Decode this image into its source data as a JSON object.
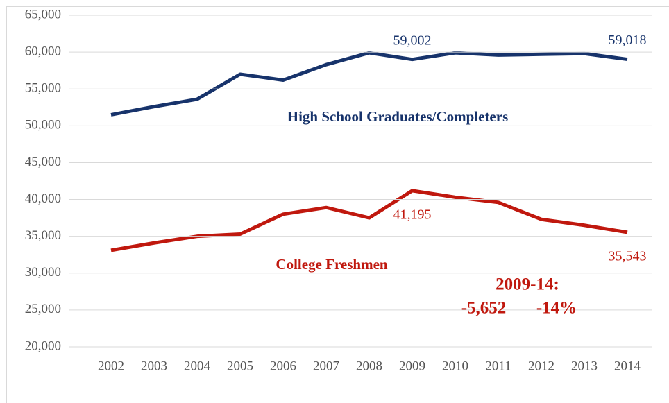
{
  "chart_data": {
    "type": "line",
    "categories": [
      "2002",
      "2003",
      "2004",
      "2005",
      "2006",
      "2007",
      "2008",
      "2009",
      "2010",
      "2011",
      "2012",
      "2013",
      "2014"
    ],
    "series": [
      {
        "name": "High School Graduates/Completers",
        "color": "#17336b",
        "values": [
          51500,
          52600,
          53600,
          57000,
          56200,
          58300,
          59900,
          59002,
          59900,
          59600,
          59700,
          59800,
          59018
        ],
        "value_labels": [
          null,
          null,
          null,
          null,
          null,
          null,
          null,
          "59,002",
          null,
          null,
          null,
          null,
          "59,018"
        ]
      },
      {
        "name": "College Freshmen",
        "color": "#c0180e",
        "values": [
          33100,
          34100,
          35000,
          35300,
          38000,
          38900,
          37500,
          41195,
          40300,
          39600,
          37300,
          36500,
          35543
        ],
        "value_labels": [
          null,
          null,
          null,
          null,
          null,
          null,
          null,
          "41,195",
          null,
          null,
          null,
          null,
          "35,543"
        ]
      }
    ],
    "annotations": [
      "2009-14:",
      "-5,652",
      "-14%"
    ],
    "ylim": [
      20000,
      65000
    ],
    "yticks": [
      {
        "value": 20000,
        "label": "20,000"
      },
      {
        "value": 25000,
        "label": "25,000"
      },
      {
        "value": 30000,
        "label": "30,000"
      },
      {
        "value": 35000,
        "label": "35,000"
      },
      {
        "value": 40000,
        "label": "40,000"
      },
      {
        "value": 45000,
        "label": "45,000"
      },
      {
        "value": 50000,
        "label": "50,000"
      },
      {
        "value": 55000,
        "label": "55,000"
      },
      {
        "value": 60000,
        "label": "60,000"
      },
      {
        "value": 65000,
        "label": "65,000"
      }
    ],
    "grid": true
  }
}
